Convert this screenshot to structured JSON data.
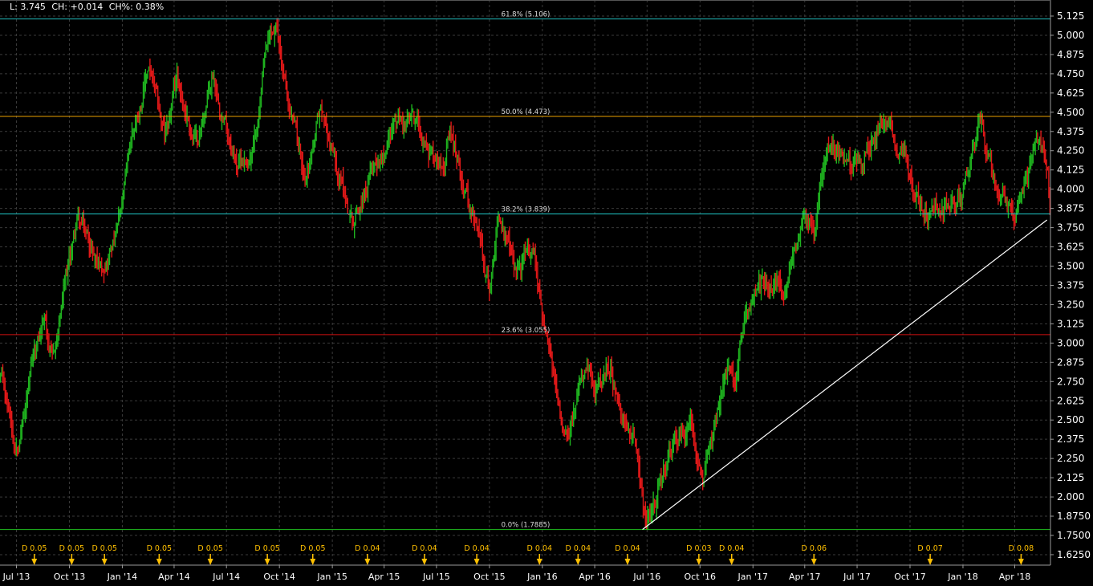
{
  "header": {
    "last": "L: 3.745",
    "change": "CH: +0.014",
    "change_pct": "CH%: 0.38%"
  },
  "chart_data": {
    "type": "ohlc",
    "title": "",
    "xlabel": "",
    "ylabel": "",
    "ylim": [
      1.5625,
      5.1875
    ],
    "grid": true,
    "y_ticks": [
      "5.125",
      "5.000",
      "4.875",
      "4.750",
      "4.625",
      "4.500",
      "4.375",
      "4.250",
      "4.125",
      "4.000",
      "3.875",
      "3.750",
      "3.625",
      "3.500",
      "3.375",
      "3.250",
      "3.125",
      "3.000",
      "2.875",
      "2.750",
      "2.625",
      "2.500",
      "2.375",
      "2.250",
      "2.125",
      "2.000",
      "1.8750",
      "1.7500",
      "1.6250"
    ],
    "x_ticks": [
      {
        "date": "2013-07-01",
        "label": "Jul '13"
      },
      {
        "date": "2013-10-01",
        "label": "Oct '13"
      },
      {
        "date": "2014-01-01",
        "label": "Jan '14"
      },
      {
        "date": "2014-04-01",
        "label": "Apr '14"
      },
      {
        "date": "2014-07-01",
        "label": "Jul '14"
      },
      {
        "date": "2014-10-01",
        "label": "Oct '14"
      },
      {
        "date": "2015-01-01",
        "label": "Jan '15"
      },
      {
        "date": "2015-04-01",
        "label": "Apr '15"
      },
      {
        "date": "2015-07-01",
        "label": "Jul '15"
      },
      {
        "date": "2015-10-01",
        "label": "Oct '15"
      },
      {
        "date": "2016-01-01",
        "label": "Jan '16"
      },
      {
        "date": "2016-04-01",
        "label": "Apr '16"
      },
      {
        "date": "2016-07-01",
        "label": "Jul '16"
      },
      {
        "date": "2016-10-01",
        "label": "Oct '16"
      },
      {
        "date": "2017-01-01",
        "label": "Jan '17"
      },
      {
        "date": "2017-04-01",
        "label": "Apr '17"
      },
      {
        "date": "2017-07-01",
        "label": "Jul '17"
      },
      {
        "date": "2017-10-01",
        "label": "Oct '17"
      },
      {
        "date": "2018-01-01",
        "label": "Jan '18"
      },
      {
        "date": "2018-04-01",
        "label": "Apr '18"
      }
    ],
    "price_path": [
      [
        "2013-06-02",
        2.78
      ],
      [
        "2013-06-28",
        2.35
      ],
      [
        "2013-08-18",
        3.15
      ],
      [
        "2013-09-01",
        2.85
      ],
      [
        "2013-10-13",
        3.8
      ],
      [
        "2013-11-24",
        3.5
      ],
      [
        "2013-12-28",
        3.8
      ],
      [
        "2014-01-18",
        4.35
      ],
      [
        "2014-02-15",
        4.8
      ],
      [
        "2014-03-15",
        4.3
      ],
      [
        "2014-04-05",
        4.7
      ],
      [
        "2014-05-10",
        4.3
      ],
      [
        "2014-06-07",
        4.75
      ],
      [
        "2014-07-19",
        4.2
      ],
      [
        "2014-08-16",
        4.25
      ],
      [
        "2014-09-06",
        4.85
      ],
      [
        "2014-09-24",
        5.0
      ],
      [
        "2014-10-18",
        4.5
      ],
      [
        "2014-11-14",
        4.1
      ],
      [
        "2014-12-11",
        4.5
      ],
      [
        "2015-02-05",
        3.8
      ],
      [
        "2015-03-06",
        4.1
      ],
      [
        "2015-04-16",
        4.45
      ],
      [
        "2015-05-28",
        4.4
      ],
      [
        "2015-07-02",
        4.2
      ],
      [
        "2015-07-23",
        4.35
      ],
      [
        "2015-08-27",
        3.9
      ],
      [
        "2015-09-17",
        3.6
      ],
      [
        "2015-10-01",
        3.35
      ],
      [
        "2015-10-15",
        3.9
      ],
      [
        "2015-11-12",
        3.45
      ],
      [
        "2015-12-17",
        3.6
      ],
      [
        "2016-01-07",
        3.0
      ],
      [
        "2016-02-04",
        2.45
      ],
      [
        "2016-03-17",
        2.8
      ],
      [
        "2016-03-31",
        2.6
      ],
      [
        "2016-04-27",
        2.85
      ],
      [
        "2016-05-18",
        2.4
      ],
      [
        "2016-06-08",
        2.45
      ],
      [
        "2016-06-29",
        1.85
      ],
      [
        "2016-08-03",
        2.2
      ],
      [
        "2016-09-14",
        2.5
      ],
      [
        "2016-10-05",
        2.2
      ],
      [
        "2016-11-16",
        2.8
      ],
      [
        "2016-11-29",
        2.7
      ],
      [
        "2016-12-20",
        3.25
      ],
      [
        "2017-01-31",
        3.4
      ],
      [
        "2017-02-28",
        3.3
      ],
      [
        "2017-03-28",
        3.9
      ],
      [
        "2017-04-18",
        3.7
      ],
      [
        "2017-05-09",
        4.4
      ],
      [
        "2017-06-20",
        4.1
      ],
      [
        "2017-08-08",
        4.45
      ],
      [
        "2017-09-05",
        4.3
      ],
      [
        "2017-10-10",
        4.0
      ],
      [
        "2017-10-30",
        3.8
      ],
      [
        "2017-12-04",
        3.9
      ],
      [
        "2018-01-01",
        3.95
      ],
      [
        "2018-01-29",
        4.4
      ],
      [
        "2018-02-26",
        4.0
      ],
      [
        "2018-03-26",
        3.8
      ],
      [
        "2018-04-16",
        3.95
      ],
      [
        "2018-05-13",
        4.3
      ],
      [
        "2018-05-27",
        4.1
      ],
      [
        "2018-06-02",
        3.65
      ]
    ],
    "colors": {
      "up": "#1fb31f",
      "down": "#e01818",
      "background": "#000000",
      "grid": "#3a3a3a",
      "axis": "#9a9a9a"
    },
    "fibonacci": [
      {
        "label": "61.8% (5.106)",
        "price": 5.106,
        "color": "#20b8b8"
      },
      {
        "label": "50.0% (4.473)",
        "price": 4.473,
        "color": "#e8a000"
      },
      {
        "label": "38.2% (3.839)",
        "price": 3.839,
        "color": "#20c8c8"
      },
      {
        "label": "23.6% (3.055)",
        "price": 3.055,
        "color": "#d01010"
      },
      {
        "label": "0.0% (1.7885)",
        "price": 1.7885,
        "color": "#20c020"
      }
    ],
    "trend_line": {
      "start": [
        "2016-06-23",
        1.7885
      ],
      "end": [
        "2018-05-27",
        3.8
      ],
      "color": "#ffffff"
    },
    "dividends": [
      {
        "date": "2013-08-01",
        "label": "D 0.05"
      },
      {
        "date": "2013-10-05",
        "label": "D 0.05"
      },
      {
        "date": "2013-12-01",
        "label": "D 0.05"
      },
      {
        "date": "2014-03-06",
        "label": "D 0.05"
      },
      {
        "date": "2014-06-03",
        "label": "D 0.05"
      },
      {
        "date": "2014-09-10",
        "label": "D 0.05"
      },
      {
        "date": "2014-11-28",
        "label": "D 0.05"
      },
      {
        "date": "2015-03-03",
        "label": "D 0.04"
      },
      {
        "date": "2015-06-10",
        "label": "D 0.04"
      },
      {
        "date": "2015-09-09",
        "label": "D 0.04"
      },
      {
        "date": "2015-12-27",
        "label": "D 0.04"
      },
      {
        "date": "2016-03-03",
        "label": "D 0.04"
      },
      {
        "date": "2016-05-28",
        "label": "D 0.04"
      },
      {
        "date": "2016-09-29",
        "label": "D 0.03"
      },
      {
        "date": "2016-11-25",
        "label": "D 0.04"
      },
      {
        "date": "2017-04-17",
        "label": "D 0.06"
      },
      {
        "date": "2017-11-05",
        "label": "D 0.07"
      },
      {
        "date": "2018-04-12",
        "label": "D 0.08"
      }
    ],
    "dividend_color": "#ffc000"
  }
}
